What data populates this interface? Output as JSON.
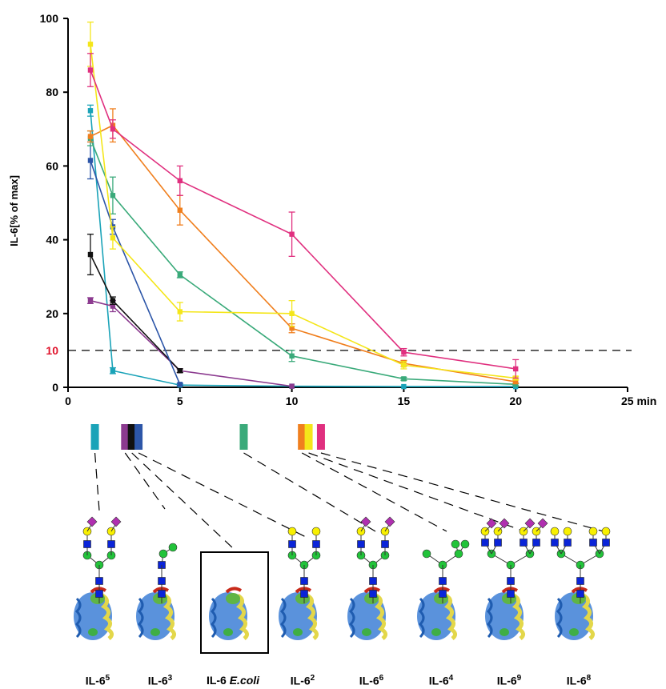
{
  "chart_data": {
    "type": "line",
    "ylabel": "IL-6[% of max]",
    "xlabel_unit": "min",
    "x_ticks": [
      "0",
      "5",
      "10",
      "15",
      "20",
      "25"
    ],
    "y_ticks": [
      "0",
      "20",
      "40",
      "60",
      "80",
      "100"
    ],
    "xlim": [
      0,
      25
    ],
    "ylim": [
      0,
      100
    ],
    "threshold": {
      "value": 10,
      "label": "10",
      "color": "#e0142c"
    },
    "grid": false,
    "series": [
      {
        "color": "#1aa3b8",
        "x": [
          1,
          2,
          5,
          10,
          15,
          20
        ],
        "y": [
          75,
          4.5,
          0.6,
          0.3,
          0.2,
          0.2
        ],
        "err": [
          1.5,
          0.8,
          0.3,
          0.2,
          0.2,
          0.2
        ]
      },
      {
        "color": "#8b3a8f",
        "x": [
          1,
          2,
          5,
          10
        ],
        "y": [
          23.5,
          22,
          4.5,
          0.3
        ],
        "err": [
          0.8,
          1.5,
          0.5,
          0.2
        ]
      },
      {
        "color": "#111111",
        "x": [
          1,
          2,
          5
        ],
        "y": [
          36,
          23.5,
          4.5
        ],
        "err": [
          5.5,
          1.0,
          0.5
        ]
      },
      {
        "color": "#2d56a8",
        "x": [
          1,
          2,
          5
        ],
        "y": [
          61.5,
          43.5,
          0.8
        ],
        "err": [
          5.0,
          2.0,
          0.3
        ]
      },
      {
        "color": "#3aaa7a",
        "x": [
          1,
          2,
          5,
          10,
          15,
          20
        ],
        "y": [
          67.5,
          52,
          30.5,
          8.5,
          2.3,
          0.8
        ],
        "err": [
          2.0,
          5.0,
          0.8,
          1.5,
          0.4,
          0.3
        ]
      },
      {
        "color": "#f07f1e",
        "x": [
          1,
          2,
          5,
          10,
          15,
          20
        ],
        "y": [
          68,
          71,
          48,
          16,
          6.5,
          1.5
        ],
        "err": [
          1.5,
          4.5,
          4.0,
          1.2,
          0.8,
          0.5
        ]
      },
      {
        "color": "#f4e61a",
        "x": [
          1,
          2,
          5,
          10,
          15,
          20
        ],
        "y": [
          93,
          40.5,
          20.5,
          20,
          6,
          2.5
        ],
        "err": [
          6.0,
          3.0,
          2.5,
          3.5,
          1.0,
          0.5
        ]
      },
      {
        "color": "#e0307f",
        "x": [
          1,
          2,
          5,
          10,
          15,
          20
        ],
        "y": [
          86,
          70,
          56,
          41.5,
          9.5,
          5
        ],
        "err": [
          4.5,
          2.5,
          4.0,
          6.0,
          1.0,
          2.5
        ]
      }
    ],
    "bars": [
      {
        "color": "#1aa3b8",
        "x": 1.2
      },
      {
        "color": "#8b3a8f",
        "x": 2.55
      },
      {
        "color": "#111111",
        "x": 2.85
      },
      {
        "color": "#2d56a8",
        "x": 3.15
      },
      {
        "color": "#3aaa7a",
        "x": 7.85
      },
      {
        "color": "#f07f1e",
        "x": 10.45
      },
      {
        "color": "#f4e61a",
        "x": 10.75
      },
      {
        "color": "#e0307f",
        "x": 11.3
      }
    ]
  },
  "glycoforms": [
    {
      "name": "IL-6",
      "sup": "5",
      "extra": ""
    },
    {
      "name": "IL-6",
      "sup": "3",
      "extra": ""
    },
    {
      "name": "IL-6",
      "sup": "",
      "extra": "E.coli"
    },
    {
      "name": "IL-6",
      "sup": "2",
      "extra": ""
    },
    {
      "name": "IL-6",
      "sup": "6",
      "extra": ""
    },
    {
      "name": "IL-6",
      "sup": "4",
      "extra": ""
    },
    {
      "name": "IL-6",
      "sup": "9",
      "extra": ""
    },
    {
      "name": "IL-6",
      "sup": "8",
      "extra": ""
    }
  ],
  "glycan_colors": {
    "sialic_acid": "#b02fb0",
    "galactose": "#f8f000",
    "glcnac": "#0a24d8",
    "mannose": "#22c33a"
  }
}
